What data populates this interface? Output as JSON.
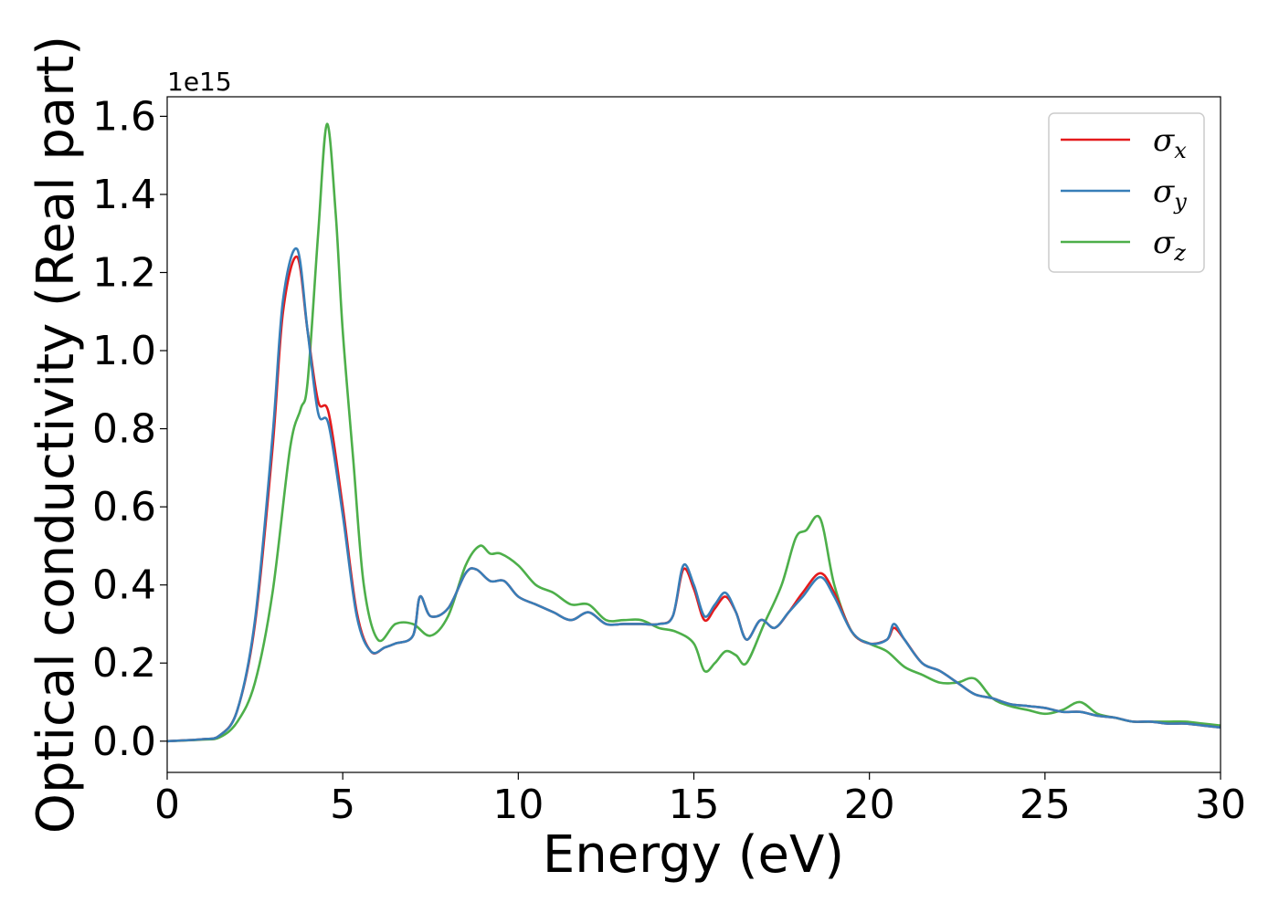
{
  "chart_data": {
    "type": "line",
    "xlabel": "Energy (eV)",
    "ylabel": "Optical conductivity (Real part)",
    "y_offset_label": "1e15",
    "xlim": [
      0,
      30
    ],
    "ylim": [
      -0.08,
      1.65
    ],
    "x_ticks": [
      0,
      5,
      10,
      15,
      20,
      25,
      30
    ],
    "x_tick_labels": [
      "0",
      "5",
      "10",
      "15",
      "20",
      "25",
      "30"
    ],
    "y_ticks": [
      0.0,
      0.2,
      0.4,
      0.6,
      0.8,
      1.0,
      1.2,
      1.4,
      1.6
    ],
    "y_tick_labels": [
      "0.0",
      "0.2",
      "0.4",
      "0.6",
      "0.8",
      "1.0",
      "1.2",
      "1.4",
      "1.6"
    ],
    "grid": false,
    "legend_position": "top-right",
    "series": [
      {
        "name": "σx",
        "symbol": "σ",
        "subscript": "x",
        "color": "#e41a1c",
        "x": [
          0,
          1,
          1.5,
          2,
          2.5,
          3,
          3.3,
          3.7,
          4,
          4.3,
          4.6,
          5,
          5.4,
          5.8,
          6.2,
          6.5,
          7,
          7.2,
          7.5,
          8,
          8.5,
          8.8,
          9.2,
          9.6,
          10,
          10.5,
          11,
          11.5,
          12,
          12.5,
          13,
          13.5,
          14,
          14.4,
          14.7,
          15,
          15.3,
          15.6,
          15.9,
          16.2,
          16.5,
          16.9,
          17.3,
          17.7,
          18.1,
          18.6,
          19,
          19.5,
          20,
          20.5,
          20.7,
          21,
          21.5,
          22,
          22.5,
          23,
          23.5,
          24,
          24.5,
          25,
          25.5,
          26,
          26.5,
          27,
          27.5,
          28,
          28.5,
          29,
          29.5,
          30
        ],
        "y": [
          0,
          0.005,
          0.015,
          0.08,
          0.3,
          0.75,
          1.1,
          1.24,
          1.05,
          0.87,
          0.84,
          0.6,
          0.33,
          0.23,
          0.24,
          0.25,
          0.27,
          0.37,
          0.32,
          0.34,
          0.43,
          0.44,
          0.41,
          0.41,
          0.37,
          0.35,
          0.33,
          0.31,
          0.33,
          0.3,
          0.3,
          0.3,
          0.3,
          0.32,
          0.44,
          0.39,
          0.31,
          0.34,
          0.37,
          0.33,
          0.26,
          0.31,
          0.29,
          0.33,
          0.38,
          0.43,
          0.38,
          0.28,
          0.25,
          0.26,
          0.29,
          0.26,
          0.2,
          0.18,
          0.15,
          0.12,
          0.11,
          0.095,
          0.09,
          0.085,
          0.075,
          0.075,
          0.065,
          0.06,
          0.05,
          0.05,
          0.045,
          0.045,
          0.04,
          0.035
        ]
      },
      {
        "name": "σy",
        "symbol": "σ",
        "subscript": "y",
        "color": "#377eb8",
        "x": [
          0,
          1,
          1.5,
          2,
          2.5,
          3,
          3.3,
          3.7,
          4,
          4.3,
          4.6,
          5,
          5.4,
          5.8,
          6.2,
          6.5,
          7,
          7.2,
          7.5,
          8,
          8.5,
          8.8,
          9.2,
          9.6,
          10,
          10.5,
          11,
          11.5,
          12,
          12.5,
          13,
          13.5,
          14,
          14.4,
          14.7,
          15,
          15.3,
          15.6,
          15.9,
          16.2,
          16.5,
          16.9,
          17.3,
          17.7,
          18.1,
          18.6,
          19,
          19.5,
          20,
          20.5,
          20.7,
          21,
          21.5,
          22,
          22.5,
          23,
          23.5,
          24,
          24.5,
          25,
          25.5,
          26,
          26.5,
          27,
          27.5,
          28,
          28.5,
          29,
          29.5,
          30
        ],
        "y": [
          0,
          0.005,
          0.015,
          0.08,
          0.31,
          0.78,
          1.13,
          1.26,
          1.05,
          0.84,
          0.81,
          0.58,
          0.32,
          0.23,
          0.24,
          0.25,
          0.27,
          0.37,
          0.32,
          0.34,
          0.43,
          0.44,
          0.41,
          0.41,
          0.37,
          0.35,
          0.33,
          0.31,
          0.33,
          0.3,
          0.3,
          0.3,
          0.3,
          0.32,
          0.45,
          0.4,
          0.32,
          0.35,
          0.38,
          0.33,
          0.26,
          0.31,
          0.29,
          0.33,
          0.37,
          0.42,
          0.37,
          0.28,
          0.25,
          0.26,
          0.3,
          0.26,
          0.2,
          0.18,
          0.15,
          0.12,
          0.11,
          0.095,
          0.09,
          0.085,
          0.075,
          0.075,
          0.065,
          0.06,
          0.05,
          0.05,
          0.045,
          0.045,
          0.04,
          0.035
        ]
      },
      {
        "name": "σz",
        "symbol": "σ",
        "subscript": "z",
        "color": "#4daf4a",
        "x": [
          0,
          1,
          1.5,
          2,
          2.5,
          3,
          3.5,
          3.8,
          4,
          4.3,
          4.55,
          4.8,
          5,
          5.3,
          5.6,
          6,
          6.5,
          7,
          7.5,
          8,
          8.5,
          8.9,
          9.2,
          9.5,
          10,
          10.5,
          11,
          11.5,
          12,
          12.5,
          13,
          13.5,
          14,
          14.5,
          15,
          15.3,
          15.6,
          15.9,
          16.2,
          16.5,
          17,
          17.5,
          17.9,
          18.2,
          18.6,
          19,
          19.5,
          20,
          20.5,
          21,
          21.5,
          22,
          22.5,
          23,
          23.5,
          24,
          24.5,
          25,
          25.5,
          26,
          26.5,
          27,
          27.5,
          28,
          28.5,
          29,
          29.5,
          30
        ],
        "y": [
          0,
          0.004,
          0.01,
          0.05,
          0.15,
          0.38,
          0.75,
          0.85,
          0.92,
          1.3,
          1.58,
          1.35,
          1.05,
          0.72,
          0.4,
          0.26,
          0.3,
          0.3,
          0.27,
          0.32,
          0.45,
          0.5,
          0.48,
          0.48,
          0.45,
          0.4,
          0.38,
          0.35,
          0.35,
          0.31,
          0.31,
          0.31,
          0.29,
          0.28,
          0.25,
          0.18,
          0.2,
          0.23,
          0.22,
          0.2,
          0.3,
          0.4,
          0.52,
          0.54,
          0.57,
          0.4,
          0.28,
          0.25,
          0.23,
          0.19,
          0.17,
          0.15,
          0.15,
          0.16,
          0.11,
          0.09,
          0.08,
          0.07,
          0.08,
          0.1,
          0.07,
          0.06,
          0.05,
          0.05,
          0.05,
          0.05,
          0.045,
          0.04
        ]
      }
    ]
  }
}
